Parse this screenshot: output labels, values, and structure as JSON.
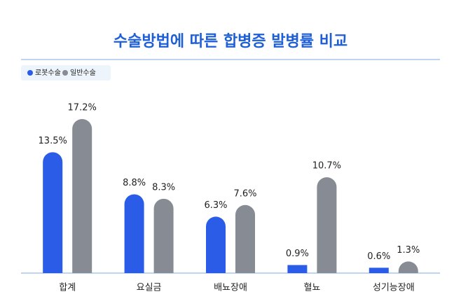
{
  "chart_data": {
    "type": "bar",
    "title": "수술방법에 따른 합병증 발병률 비교",
    "categories": [
      "합계",
      "요실금",
      "배뇨장애",
      "혈뇨",
      "성기능장애"
    ],
    "series": [
      {
        "name": "로봇수술",
        "color": "#2a5ce8",
        "values": [
          13.5,
          8.8,
          6.3,
          0.9,
          0.6
        ],
        "value_labels": [
          "13.5%",
          "8.8%",
          "6.3%",
          "0.9%",
          "0.6%"
        ]
      },
      {
        "name": "일반수술",
        "color": "#868b94",
        "values": [
          17.2,
          8.3,
          7.6,
          10.7,
          1.3
        ],
        "value_labels": [
          "17.2%",
          "8.3%",
          "7.6%",
          "10.7%",
          "1.3%"
        ]
      }
    ]
  }
}
